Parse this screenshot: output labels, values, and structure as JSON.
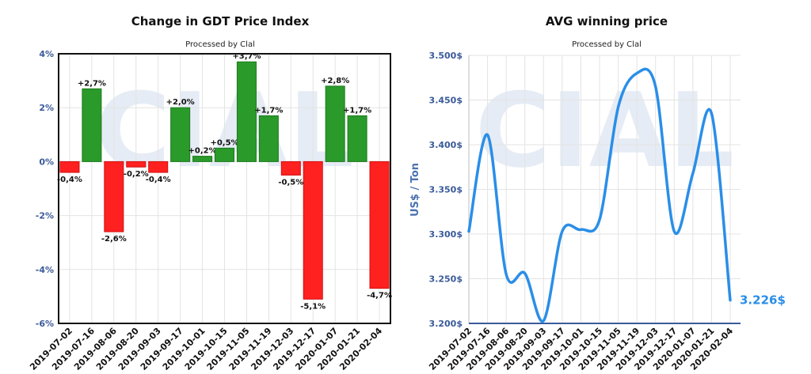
{
  "chart_data": [
    {
      "type": "bar",
      "title": "Change in GDT Price Index",
      "subtitle": "Processed by Clal",
      "watermark": "CIAL",
      "categories": [
        "2019-07-02",
        "2019-07-16",
        "2019-08-06",
        "2019-08-20",
        "2019-09-03",
        "2019-09-17",
        "2019-10-01",
        "2019-10-15",
        "2019-11-05",
        "2019-11-19",
        "2019-12-03",
        "2019-12-17",
        "2020-01-07",
        "2020-01-21",
        "2020-02-04"
      ],
      "values": [
        -0.4,
        2.7,
        -2.6,
        -0.2,
        -0.4,
        2.0,
        0.2,
        0.5,
        3.7,
        1.7,
        -0.5,
        -5.1,
        2.8,
        1.7,
        -4.7
      ],
      "data_labels": [
        "-0,4%",
        "+2,7%",
        "-2,6%",
        "-0,2%",
        "-0,4%",
        "+2,0%",
        "+0,2%",
        "+0,5%",
        "+3,7%",
        "+1,7%",
        "-0,5%",
        "-5,1%",
        "+2,8%",
        "+1,7%",
        "-4,7%"
      ],
      "yticks": [
        4,
        2,
        0,
        -2,
        -4,
        -6
      ],
      "ytick_labels": [
        "4%",
        "2%",
        "0%",
        "-2%",
        "-4%",
        "-6%"
      ],
      "ylim": [
        -6,
        4
      ],
      "colors": {
        "positive": "#2a9a2a",
        "negative": "#ff2020",
        "axis_text": "#3a5a9a"
      },
      "grid": true
    },
    {
      "type": "line",
      "title": "AVG winning price",
      "subtitle": "Processed by Clal",
      "watermark": "CIAL",
      "ylabel": "US$ / Ton",
      "categories": [
        "2019-07-02",
        "2019-07-16",
        "2019-08-06",
        "2019-08-20",
        "2019-09-03",
        "2019-09-17",
        "2019-10-01",
        "2019-10-15",
        "2019-11-05",
        "2019-11-19",
        "2019-12-03",
        "2019-12-17",
        "2020-01-07",
        "2020-01-21",
        "2020-02-04"
      ],
      "values": [
        3303,
        3411,
        3255,
        3256,
        3203,
        3303,
        3305,
        3316,
        3442,
        3480,
        3465,
        3303,
        3368,
        3435,
        3226
      ],
      "last_value_label": "3.226$",
      "yticks": [
        3500,
        3450,
        3400,
        3350,
        3300,
        3250,
        3200
      ],
      "ytick_labels": [
        "3.500$",
        "3.450$",
        "3.400$",
        "3.350$",
        "3.300$",
        "3.250$",
        "3.200$"
      ],
      "ylim": [
        3200,
        3500
      ],
      "colors": {
        "line": "#2a8ee8",
        "axis_text": "#3a5a9a"
      },
      "grid": true
    }
  ]
}
